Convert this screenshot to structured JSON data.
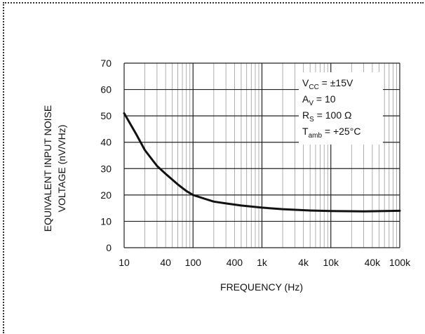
{
  "chart_data": {
    "type": "line",
    "xlabel": "FREQUENCY (Hz)",
    "ylabel_lines": [
      "EQUIVALENT INPUT NOISE",
      "VOLTAGE (nV/VHz)"
    ],
    "x_scale": "log",
    "xlim": [
      10,
      100000
    ],
    "ylim": [
      0,
      70
    ],
    "x_ticks": [
      {
        "value": 10,
        "label": "10"
      },
      {
        "value": 40,
        "label": "40"
      },
      {
        "value": 100,
        "label": "100"
      },
      {
        "value": 400,
        "label": "400"
      },
      {
        "value": 1000,
        "label": "1k"
      },
      {
        "value": 4000,
        "label": "4k"
      },
      {
        "value": 10000,
        "label": "10k"
      },
      {
        "value": 40000,
        "label": "40k"
      },
      {
        "value": 100000,
        "label": "100k"
      }
    ],
    "y_ticks": [
      0,
      10,
      20,
      30,
      40,
      50,
      60,
      70
    ],
    "grid": true,
    "series": [
      {
        "x": [
          10,
          15,
          20,
          30,
          40,
          60,
          80,
          100,
          150,
          200,
          300,
          500,
          1000,
          2000,
          5000,
          10000,
          30000,
          100000
        ],
        "y": [
          51,
          43,
          37,
          31,
          28,
          24,
          21.5,
          20,
          18.5,
          17.5,
          16.8,
          16,
          15.2,
          14.6,
          14.1,
          13.9,
          13.8,
          14
        ]
      }
    ],
    "annotation": {
      "lines": [
        {
          "main": "V",
          "sub": "CC",
          "rest": " = ±15V"
        },
        {
          "main": "A",
          "sub": "V",
          "rest": " = 10"
        },
        {
          "main": "R",
          "sub": "S",
          "rest": " = 100 Ω"
        },
        {
          "main": "T",
          "sub": "amb",
          "rest": " = +25°C"
        }
      ]
    }
  }
}
